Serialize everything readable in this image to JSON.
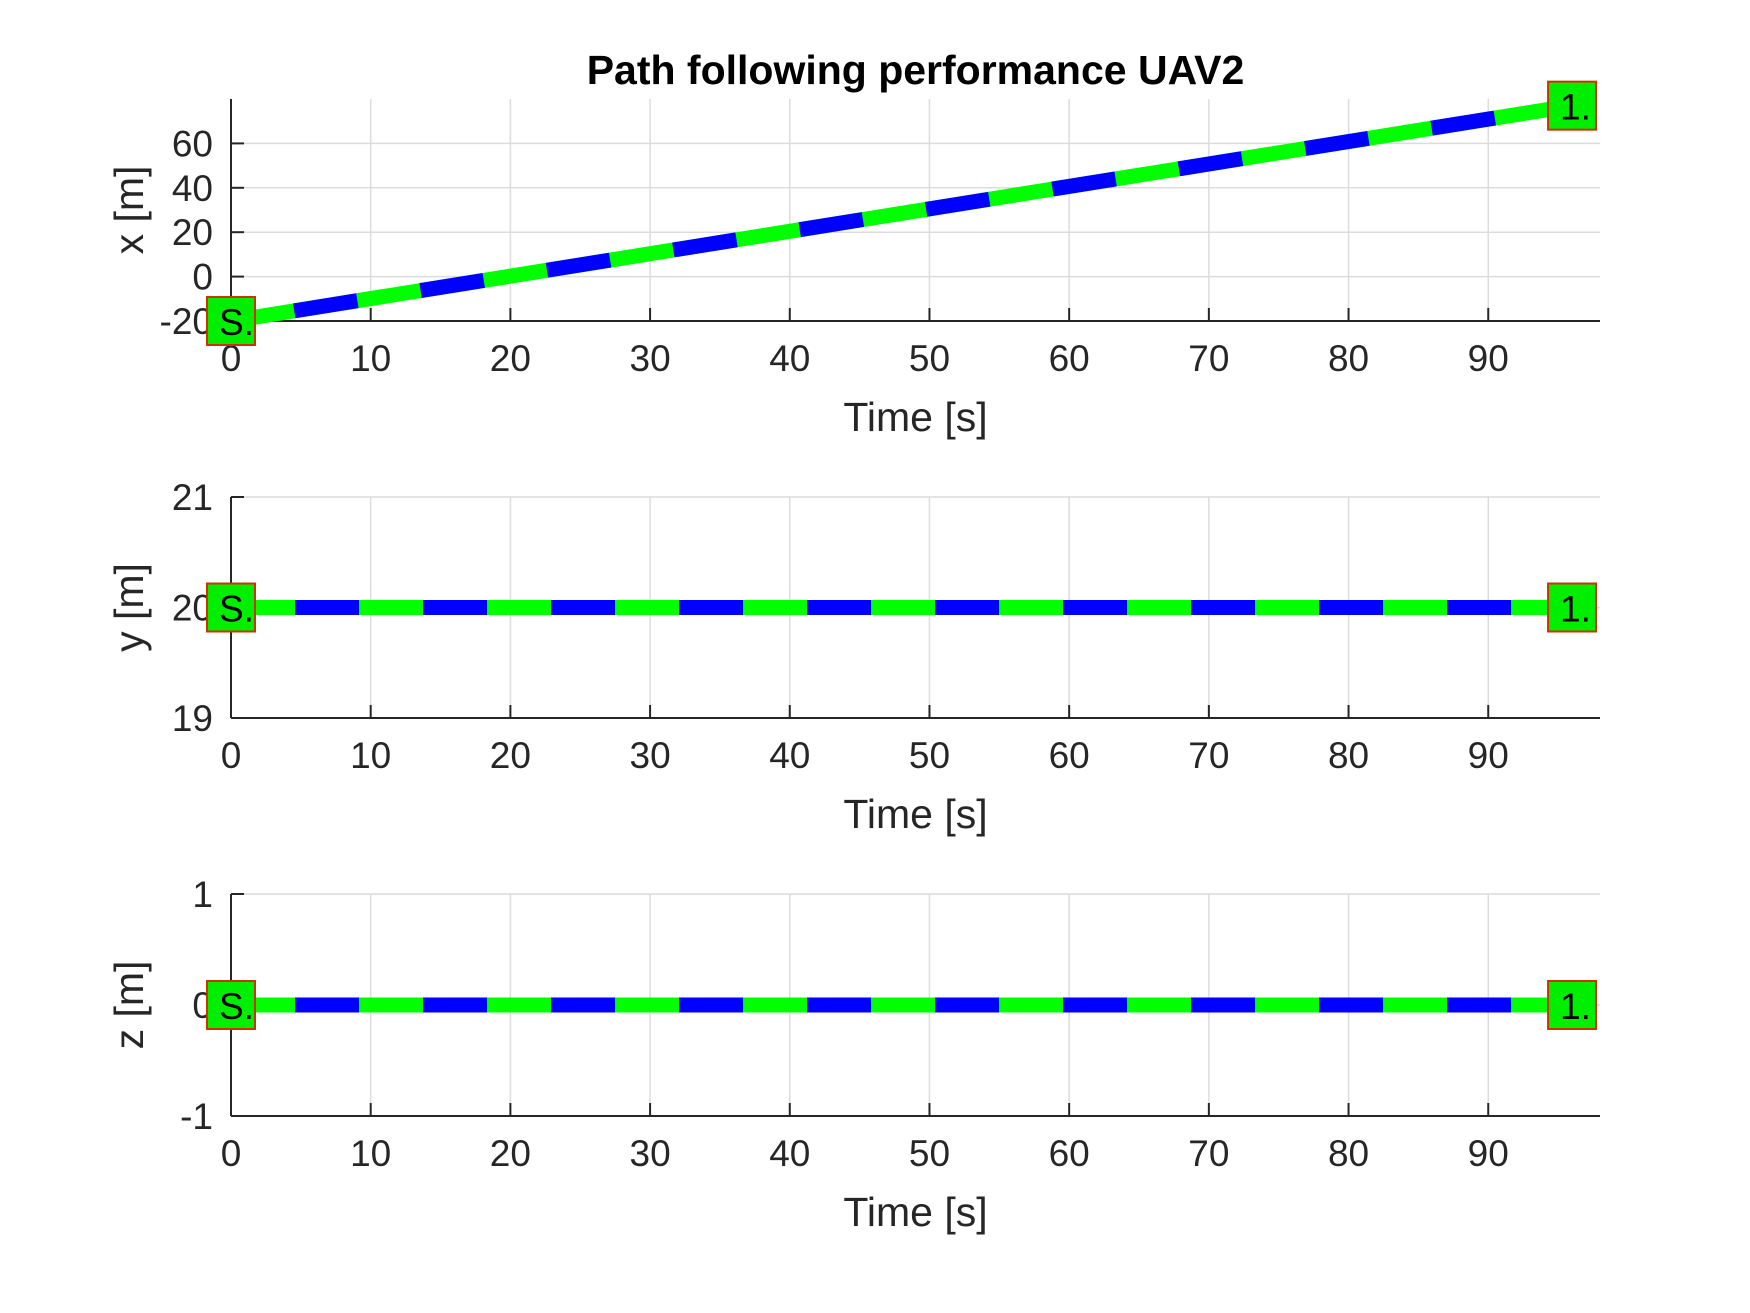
{
  "colors": {
    "reference_line": "#00ff00",
    "actual_line": "#0000ff",
    "marker_fill": "#00ee00",
    "marker_edge": "#cc3300",
    "axis": "#262626",
    "grid": "#dcdcdc"
  },
  "chart_data": [
    {
      "type": "line",
      "title": "Path following performance UAV2",
      "xlabel": "Time [s]",
      "ylabel": "x [m]",
      "xlim": [
        0,
        98
      ],
      "ylim": [
        -20,
        80
      ],
      "xticks": [
        0,
        10,
        20,
        30,
        40,
        50,
        60,
        70,
        80,
        90
      ],
      "yticks": [
        -20,
        0,
        20,
        40,
        60
      ],
      "grid": true,
      "series": [
        {
          "x": [
            0,
            96
          ],
          "y": [
            -20,
            77
          ]
        },
        {
          "x": [
            0,
            96
          ],
          "y": [
            -20,
            77
          ]
        }
      ],
      "markers": [
        {
          "x": 0,
          "y": -20,
          "label": "S."
        },
        {
          "x": 96,
          "y": 77,
          "label": "1."
        }
      ]
    },
    {
      "type": "line",
      "title": "",
      "xlabel": "Time [s]",
      "ylabel": "y [m]",
      "xlim": [
        0,
        98
      ],
      "ylim": [
        19,
        21
      ],
      "xticks": [
        0,
        10,
        20,
        30,
        40,
        50,
        60,
        70,
        80,
        90
      ],
      "yticks": [
        19,
        20,
        21
      ],
      "grid": true,
      "series": [
        {
          "x": [
            0,
            96
          ],
          "y": [
            20,
            20
          ]
        },
        {
          "x": [
            0,
            96
          ],
          "y": [
            20,
            20
          ]
        }
      ],
      "markers": [
        {
          "x": 0,
          "y": 20,
          "label": "S."
        },
        {
          "x": 96,
          "y": 20,
          "label": "1."
        }
      ]
    },
    {
      "type": "line",
      "title": "",
      "xlabel": "Time [s]",
      "ylabel": "z [m]",
      "xlim": [
        0,
        98
      ],
      "ylim": [
        -1,
        1
      ],
      "xticks": [
        0,
        10,
        20,
        30,
        40,
        50,
        60,
        70,
        80,
        90
      ],
      "yticks": [
        -1,
        0,
        1
      ],
      "grid": true,
      "series": [
        {
          "x": [
            0,
            96
          ],
          "y": [
            0,
            0
          ]
        },
        {
          "x": [
            0,
            96
          ],
          "y": [
            0,
            0
          ]
        }
      ],
      "markers": [
        {
          "x": 0,
          "y": 0,
          "label": "S."
        },
        {
          "x": 96,
          "y": 0,
          "label": "1."
        }
      ]
    }
  ]
}
